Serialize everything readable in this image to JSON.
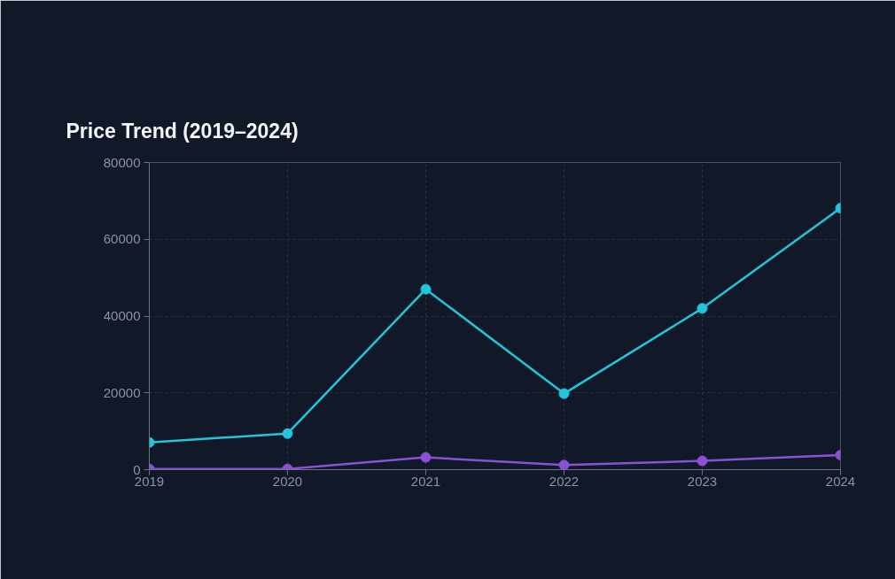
{
  "chart_data": {
    "type": "line",
    "title": "Price Trend (2019–2024)",
    "x": [
      2019,
      2020,
      2021,
      2022,
      2023,
      2024
    ],
    "xlim": [
      2019,
      2024
    ],
    "xticks": [
      2019,
      2020,
      2021,
      2022,
      2023,
      2024
    ],
    "ylim": [
      0,
      80000
    ],
    "yticks": [
      0,
      20000,
      40000,
      60000,
      80000
    ],
    "grid": true,
    "marker": "circle",
    "line_style": "solid",
    "series": [
      {
        "color": "#22c5dc",
        "values": [
          7100,
          9400,
          47000,
          19800,
          42000,
          68100
        ]
      },
      {
        "color": "#8b4fd8",
        "values": [
          200,
          200,
          3200,
          1200,
          2300,
          3800
        ]
      }
    ]
  }
}
